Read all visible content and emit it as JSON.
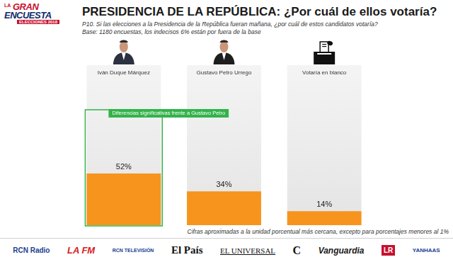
{
  "chart_data": {
    "type": "bar",
    "title": "PRESIDENCIA DE LA REPÚBLICA: ¿Por cuál de ellos votaría?",
    "subtitle": [
      "P10. Si las elecciones a la Presidencia de la República fueran mañana, ¿por cuál de estos candidatos votaría?",
      "Base: 1180 encuestas, los indecisos 6% están por fuera de la base"
    ],
    "categories": [
      "Iván Duque Márquez",
      "Gustavo Petro Urrego",
      "Votaría en blanco"
    ],
    "values": [
      52,
      34,
      14
    ],
    "value_labels": [
      "52%",
      "34%",
      "14%"
    ],
    "color": "#f7941d",
    "ylim": [
      0,
      140
    ],
    "grid": false,
    "data_labels": true,
    "tick_labels": "x",
    "annotations": [
      {
        "text": "Diferencias significativas frente a Gustavo Petro",
        "category": "Iván Duque Márquez"
      }
    ],
    "footnote": "Cifras aproximadas a la unidad porcentual más cercana, excepto para porcentajes menores al 1%"
  },
  "header": {
    "logo": [
      "LA",
      "GRAN",
      "ENCUESTA",
      "ELECCIONES 2018"
    ]
  },
  "footer": {
    "logos": [
      "RCN Radio",
      "LA FM",
      "RCN TELEVISIÓN",
      "El País",
      "EL UNIVERSAL",
      "C",
      "Vanguardia",
      "LR",
      "YANHAAS"
    ]
  }
}
